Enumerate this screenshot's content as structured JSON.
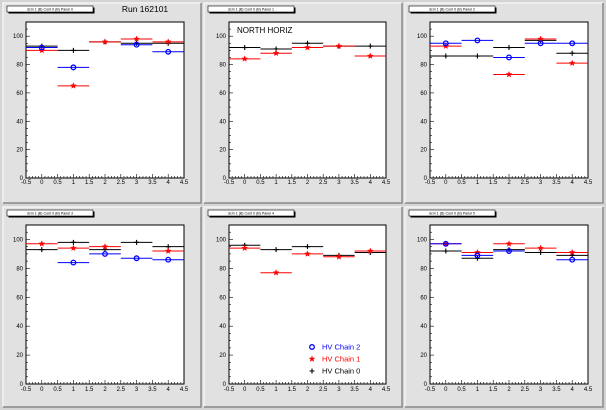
{
  "chart_data": [
    {
      "type": "scatter",
      "panel_label": "dcm 1 (B) Cont 0 (B) Panel 0",
      "title": "Run 162101",
      "x_ticks": [
        "-0.5",
        "0",
        "0.5",
        "1",
        "1.5",
        "2",
        "2.5",
        "3",
        "3.5",
        "4",
        "4.5"
      ],
      "y_ticks": [
        "0",
        "20",
        "40",
        "60",
        "80",
        "100"
      ],
      "xlim": [
        -0.5,
        4.5
      ],
      "ylim": [
        0,
        110
      ],
      "series": [
        {
          "name": "HV Chain 0",
          "color": "#000000",
          "marker": "cross",
          "x": [
            0,
            1,
            2,
            3,
            4
          ],
          "y": [
            93,
            90,
            96,
            95,
            95
          ]
        },
        {
          "name": "HV Chain 1",
          "color": "#ff0000",
          "marker": "star",
          "x": [
            0,
            1,
            2,
            3,
            4
          ],
          "y": [
            90,
            65,
            96,
            98,
            96
          ]
        },
        {
          "name": "HV Chain 2",
          "color": "#0000ff",
          "marker": "circle",
          "x": [
            0,
            1,
            3,
            4
          ],
          "y": [
            92,
            78,
            94,
            89
          ]
        }
      ]
    },
    {
      "type": "scatter",
      "panel_label": "dcm 1 (B) Cont 0 (B) Panel 1",
      "title": "NORTH HORIZ",
      "x_ticks": [
        "-0.5",
        "0",
        "0.5",
        "1",
        "1.5",
        "2",
        "2.5",
        "3",
        "3.5",
        "4",
        "4.5"
      ],
      "y_ticks": [
        "0",
        "20",
        "40",
        "60",
        "80",
        "100"
      ],
      "xlim": [
        -0.5,
        4.5
      ],
      "ylim": [
        0,
        110
      ],
      "series": [
        {
          "name": "HV Chain 0",
          "color": "#000000",
          "marker": "cross",
          "x": [
            0,
            1,
            2,
            3,
            4
          ],
          "y": [
            92,
            91,
            95,
            93,
            93
          ]
        },
        {
          "name": "HV Chain 1",
          "color": "#ff0000",
          "marker": "star",
          "x": [
            0,
            1,
            2,
            3,
            4
          ],
          "y": [
            84,
            88,
            92,
            93,
            86
          ]
        }
      ]
    },
    {
      "type": "scatter",
      "panel_label": "dcm 1 (B) Cont 0 (B) Panel 2",
      "title": "",
      "x_ticks": [
        "-0.5",
        "0",
        "0.5",
        "1",
        "1.5",
        "2",
        "2.5",
        "3",
        "3.5",
        "4",
        "4.5"
      ],
      "y_ticks": [
        "0",
        "20",
        "40",
        "60",
        "80",
        "100"
      ],
      "xlim": [
        -0.5,
        4.5
      ],
      "ylim": [
        0,
        110
      ],
      "series": [
        {
          "name": "HV Chain 0",
          "color": "#000000",
          "marker": "cross",
          "x": [
            0,
            1,
            2,
            3,
            4
          ],
          "y": [
            86,
            86,
            92,
            97,
            88
          ]
        },
        {
          "name": "HV Chain 1",
          "color": "#ff0000",
          "marker": "star",
          "x": [
            0,
            2,
            3,
            4
          ],
          "y": [
            93,
            73,
            98,
            81
          ]
        },
        {
          "name": "HV Chain 2",
          "color": "#0000ff",
          "marker": "circle",
          "x": [
            0,
            1,
            2,
            3,
            4
          ],
          "y": [
            95,
            97,
            85,
            95,
            95
          ]
        }
      ]
    },
    {
      "type": "scatter",
      "panel_label": "dcm 1 (B) Cont 0 (B) Panel 3",
      "title": "",
      "x_ticks": [
        "-0.5",
        "0",
        "0.5",
        "1",
        "1.5",
        "2",
        "2.5",
        "3",
        "3.5",
        "4",
        "4.5"
      ],
      "y_ticks": [
        "0",
        "20",
        "40",
        "60",
        "80",
        "100"
      ],
      "xlim": [
        -0.5,
        4.5
      ],
      "ylim": [
        0,
        110
      ],
      "series": [
        {
          "name": "HV Chain 0",
          "color": "#000000",
          "marker": "cross",
          "x": [
            0,
            1,
            2,
            3,
            4
          ],
          "y": [
            93,
            98,
            93,
            98,
            95
          ]
        },
        {
          "name": "HV Chain 1",
          "color": "#ff0000",
          "marker": "star",
          "x": [
            0,
            1,
            2,
            4
          ],
          "y": [
            97,
            94,
            95,
            92
          ]
        },
        {
          "name": "HV Chain 2",
          "color": "#0000ff",
          "marker": "circle",
          "x": [
            1,
            2,
            3,
            4
          ],
          "y": [
            84,
            90,
            87,
            86
          ]
        }
      ]
    },
    {
      "type": "scatter",
      "panel_label": "dcm 1 (B) Cont 0 (B) Panel 4",
      "title": "",
      "x_ticks": [
        "-0.5",
        "0",
        "0.5",
        "1",
        "1.5",
        "2",
        "2.5",
        "3",
        "3.5",
        "4",
        "4.5"
      ],
      "y_ticks": [
        "0",
        "20",
        "40",
        "60",
        "80",
        "100"
      ],
      "xlim": [
        -0.5,
        4.5
      ],
      "ylim": [
        0,
        110
      ],
      "legend": [
        {
          "label": "HV Chain 2",
          "color": "#0000ff",
          "marker": "circle"
        },
        {
          "label": "HV Chain 1",
          "color": "#ff0000",
          "marker": "star"
        },
        {
          "label": "HV Chain 0",
          "color": "#000000",
          "marker": "cross"
        }
      ],
      "series": [
        {
          "name": "HV Chain 0",
          "color": "#000000",
          "marker": "cross",
          "x": [
            0,
            1,
            2,
            3,
            4
          ],
          "y": [
            96,
            93,
            95,
            89,
            91
          ]
        },
        {
          "name": "HV Chain 1",
          "color": "#ff0000",
          "marker": "star",
          "x": [
            0,
            1,
            2,
            3,
            4
          ],
          "y": [
            94,
            77,
            90,
            88,
            92
          ]
        }
      ]
    },
    {
      "type": "scatter",
      "panel_label": "dcm 1 (B) Cont 0 (B) Panel 5",
      "title": "",
      "x_ticks": [
        "-0.5",
        "0",
        "0.5",
        "1",
        "1.5",
        "2",
        "2.5",
        "3",
        "3.5",
        "4",
        "4.5"
      ],
      "y_ticks": [
        "0",
        "20",
        "40",
        "60",
        "80",
        "100"
      ],
      "xlim": [
        -0.5,
        4.5
      ],
      "ylim": [
        0,
        110
      ],
      "series": [
        {
          "name": "HV Chain 0",
          "color": "#000000",
          "marker": "cross",
          "x": [
            0,
            1,
            2,
            3,
            4
          ],
          "y": [
            92,
            87,
            93,
            91,
            89
          ]
        },
        {
          "name": "HV Chain 1",
          "color": "#ff0000",
          "marker": "star",
          "x": [
            0,
            1,
            2,
            3,
            4
          ],
          "y": [
            97,
            91,
            97,
            94,
            91
          ]
        },
        {
          "name": "HV Chain 2",
          "color": "#0000ff",
          "marker": "circle",
          "x": [
            0,
            1,
            2,
            4
          ],
          "y": [
            97,
            89,
            92,
            86
          ]
        }
      ]
    }
  ]
}
